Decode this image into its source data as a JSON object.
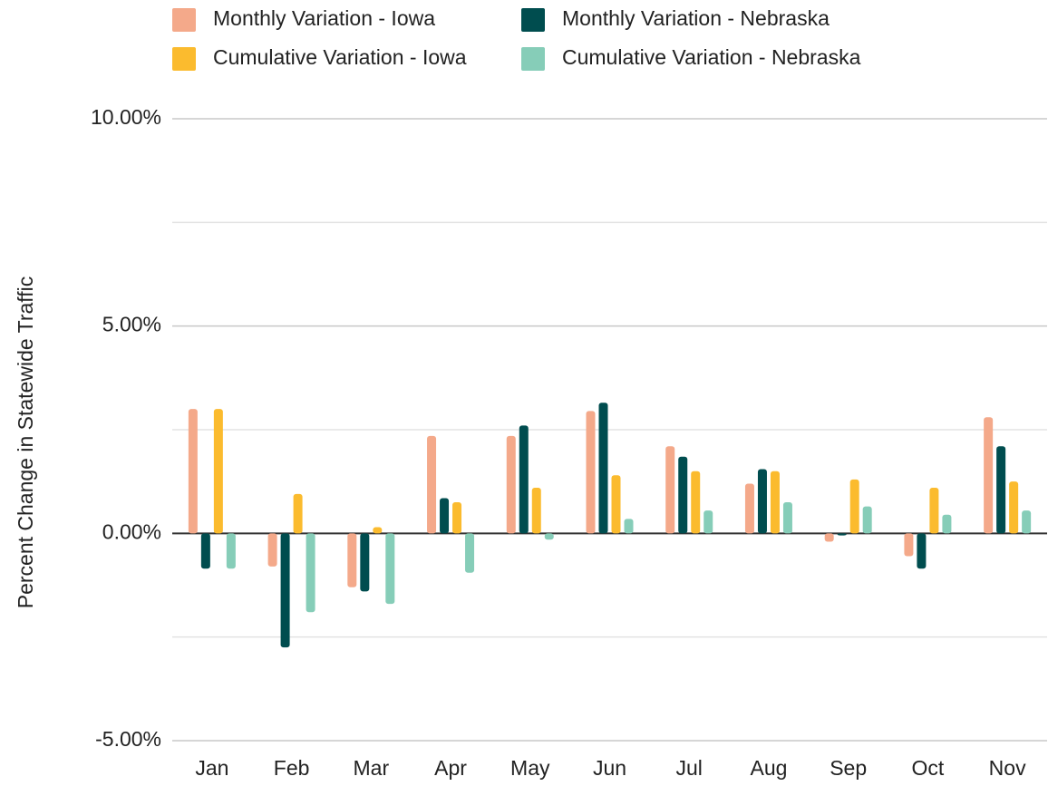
{
  "chart_data": {
    "type": "bar",
    "y_label": "Percent Change in Statewide Traffic",
    "categories": [
      "Jan",
      "Feb",
      "Mar",
      "Apr",
      "May",
      "Jun",
      "Jul",
      "Aug",
      "Sep",
      "Oct",
      "Nov"
    ],
    "series": [
      {
        "name": "Monthly Variation - Iowa",
        "color": "#f4a98a",
        "values": [
          3.0,
          -0.8,
          -1.3,
          2.35,
          2.35,
          2.95,
          2.1,
          1.2,
          -0.2,
          -0.55,
          2.8
        ]
      },
      {
        "name": "Monthly Variation - Nebraska",
        "color": "#004d4f",
        "values": [
          -0.85,
          -2.75,
          -1.4,
          0.85,
          2.6,
          3.15,
          1.85,
          1.55,
          -0.05,
          -0.85,
          2.1
        ]
      },
      {
        "name": "Cumulative Variation - Iowa",
        "color": "#fbbb2e",
        "values": [
          3.0,
          0.95,
          0.15,
          0.75,
          1.1,
          1.4,
          1.5,
          1.5,
          1.3,
          1.1,
          1.25
        ]
      },
      {
        "name": "Cumulative Variation - Nebraska",
        "color": "#86cdb8",
        "values": [
          -0.85,
          -1.9,
          -1.7,
          -0.95,
          -0.15,
          0.35,
          0.55,
          0.75,
          0.65,
          0.45,
          0.55
        ]
      }
    ],
    "ylim": [
      -5,
      10
    ],
    "yticks": [
      {
        "value": -5,
        "label": "-5.00%"
      },
      {
        "value": 0,
        "label": "0.00%"
      },
      {
        "value": 5,
        "label": "5.00%"
      },
      {
        "value": 10,
        "label": "10.00%"
      }
    ],
    "minor_gridlines": [
      -2.5,
      2.5,
      7.5
    ],
    "grid": true,
    "legend": "top"
  }
}
